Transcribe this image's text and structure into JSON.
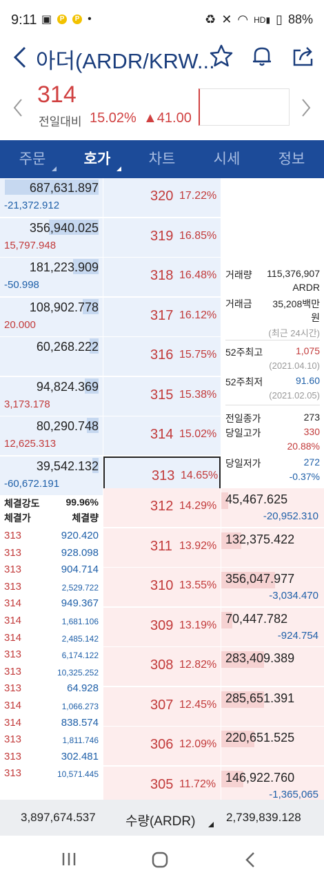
{
  "status": {
    "time": "9:11",
    "battery": "88%"
  },
  "header": {
    "title": "아더(ARDR/KRW..."
  },
  "price": {
    "current": "314",
    "change_label": "전일대비",
    "change_rate": "15.02%",
    "change_amount": "▲41.00"
  },
  "tabs": [
    {
      "label": "주문"
    },
    {
      "label": "호가"
    },
    {
      "label": "차트"
    },
    {
      "label": "시세"
    },
    {
      "label": "정보"
    }
  ],
  "asks": [
    {
      "qty": "687,631.897",
      "chg": "-21,372.912",
      "chg_sign": "neg",
      "price": "320",
      "rate": "17.22%",
      "bar": 0.95
    },
    {
      "qty": "356,940.025",
      "chg": "15,797.948",
      "chg_sign": "pos",
      "price": "319",
      "rate": "16.85%",
      "bar": 0.5
    },
    {
      "qty": "181,223.909",
      "chg": "-50.998",
      "chg_sign": "neg",
      "price": "318",
      "rate": "16.48%",
      "bar": 0.26
    },
    {
      "qty": "108,902.778",
      "chg": "20.000",
      "chg_sign": "pos",
      "price": "317",
      "rate": "16.12%",
      "bar": 0.16
    },
    {
      "qty": "60,268.222",
      "chg": "",
      "chg_sign": "",
      "price": "316",
      "rate": "15.75%",
      "bar": 0.09
    },
    {
      "qty": "94,824.369",
      "chg": "3,173.178",
      "chg_sign": "pos",
      "price": "315",
      "rate": "15.38%",
      "bar": 0.14
    },
    {
      "qty": "80,290.748",
      "chg": "12,625.313",
      "chg_sign": "pos",
      "price": "314",
      "rate": "15.02%",
      "bar": 0.12
    },
    {
      "qty": "39,542.132",
      "chg": "-60,672.191",
      "chg_sign": "neg",
      "price": "313",
      "rate": "14.65%",
      "bar": 0.06
    }
  ],
  "bids": [
    {
      "qty": "45,467.625",
      "chg": "-20,952.310",
      "price": "312",
      "rate": "14.29%",
      "bar": 0.13
    },
    {
      "qty": "132,375.422",
      "chg": "",
      "price": "311",
      "rate": "13.92%",
      "bar": 0.37
    },
    {
      "qty": "356,047.977",
      "chg": "-3,034.470",
      "price": "310",
      "rate": "13.55%",
      "bar": 1.0
    },
    {
      "qty": "70,447.782",
      "chg": "-924.754",
      "price": "309",
      "rate": "13.19%",
      "bar": 0.2
    },
    {
      "qty": "283,409.389",
      "chg": "",
      "price": "308",
      "rate": "12.82%",
      "bar": 0.8
    },
    {
      "qty": "285,651.391",
      "chg": "",
      "price": "307",
      "rate": "12.45%",
      "bar": 0.8
    },
    {
      "qty": "220,651.525",
      "chg": "",
      "price": "306",
      "rate": "12.09%",
      "bar": 0.62
    },
    {
      "qty": "146,922.760",
      "chg": "-1,365,065",
      "price": "305",
      "rate": "11.72%",
      "bar": 0.41
    }
  ],
  "info": {
    "volume_label": "거래량",
    "volume": "115,376,907",
    "volume_unit": "ARDR",
    "amount_label": "거래금",
    "amount": "35,208백만",
    "amount_unit": "원",
    "period_note": "(최근 24시간)",
    "high52_label": "52주최고",
    "high52": "1,075",
    "high52_date": "(2021.04.10)",
    "low52_label": "52주최저",
    "low52": "91.60",
    "low52_date": "(2021.02.05)",
    "prev_close_label": "전일종가",
    "prev_close": "273",
    "day_high_label": "당일고가",
    "day_high": "330",
    "day_high_rate": "20.88%",
    "day_low_label": "당일저가",
    "day_low": "272",
    "day_low_rate": "-0.37%"
  },
  "trades": {
    "strength_label": "체결강도",
    "strength": "99.96%",
    "price_header": "체결가",
    "qty_header": "체결량",
    "rows": [
      {
        "price": "313",
        "qty": "920.420",
        "small": false
      },
      {
        "price": "313",
        "qty": "928.098",
        "small": false
      },
      {
        "price": "313",
        "qty": "904.714",
        "small": false
      },
      {
        "price": "313",
        "qty": "2,529.722",
        "small": true
      },
      {
        "price": "314",
        "qty": "949.367",
        "small": false
      },
      {
        "price": "314",
        "qty": "1,681.106",
        "small": true
      },
      {
        "price": "314",
        "qty": "2,485.142",
        "small": true
      },
      {
        "price": "313",
        "qty": "6,174.122",
        "small": true
      },
      {
        "price": "313",
        "qty": "10,325.252",
        "small": true
      },
      {
        "price": "313",
        "qty": "64.928",
        "small": false
      },
      {
        "price": "314",
        "qty": "1,066.273",
        "small": true
      },
      {
        "price": "314",
        "qty": "838.574",
        "small": false
      },
      {
        "price": "313",
        "qty": "1,811.746",
        "small": true
      },
      {
        "price": "313",
        "qty": "302.481",
        "small": false
      },
      {
        "price": "313",
        "qty": "10,571.445",
        "small": true
      }
    ]
  },
  "footer": {
    "ask_total": "3,897,674.537",
    "unit_selector": "수량(ARDR)",
    "bid_total": "2,739,839.128"
  },
  "colors": {
    "tab_bar": "#1c4b99",
    "up": "#d04040",
    "down": "#1e5fa8",
    "ask_bg": "#eaf1fb",
    "bid_bg": "#fdeded"
  }
}
